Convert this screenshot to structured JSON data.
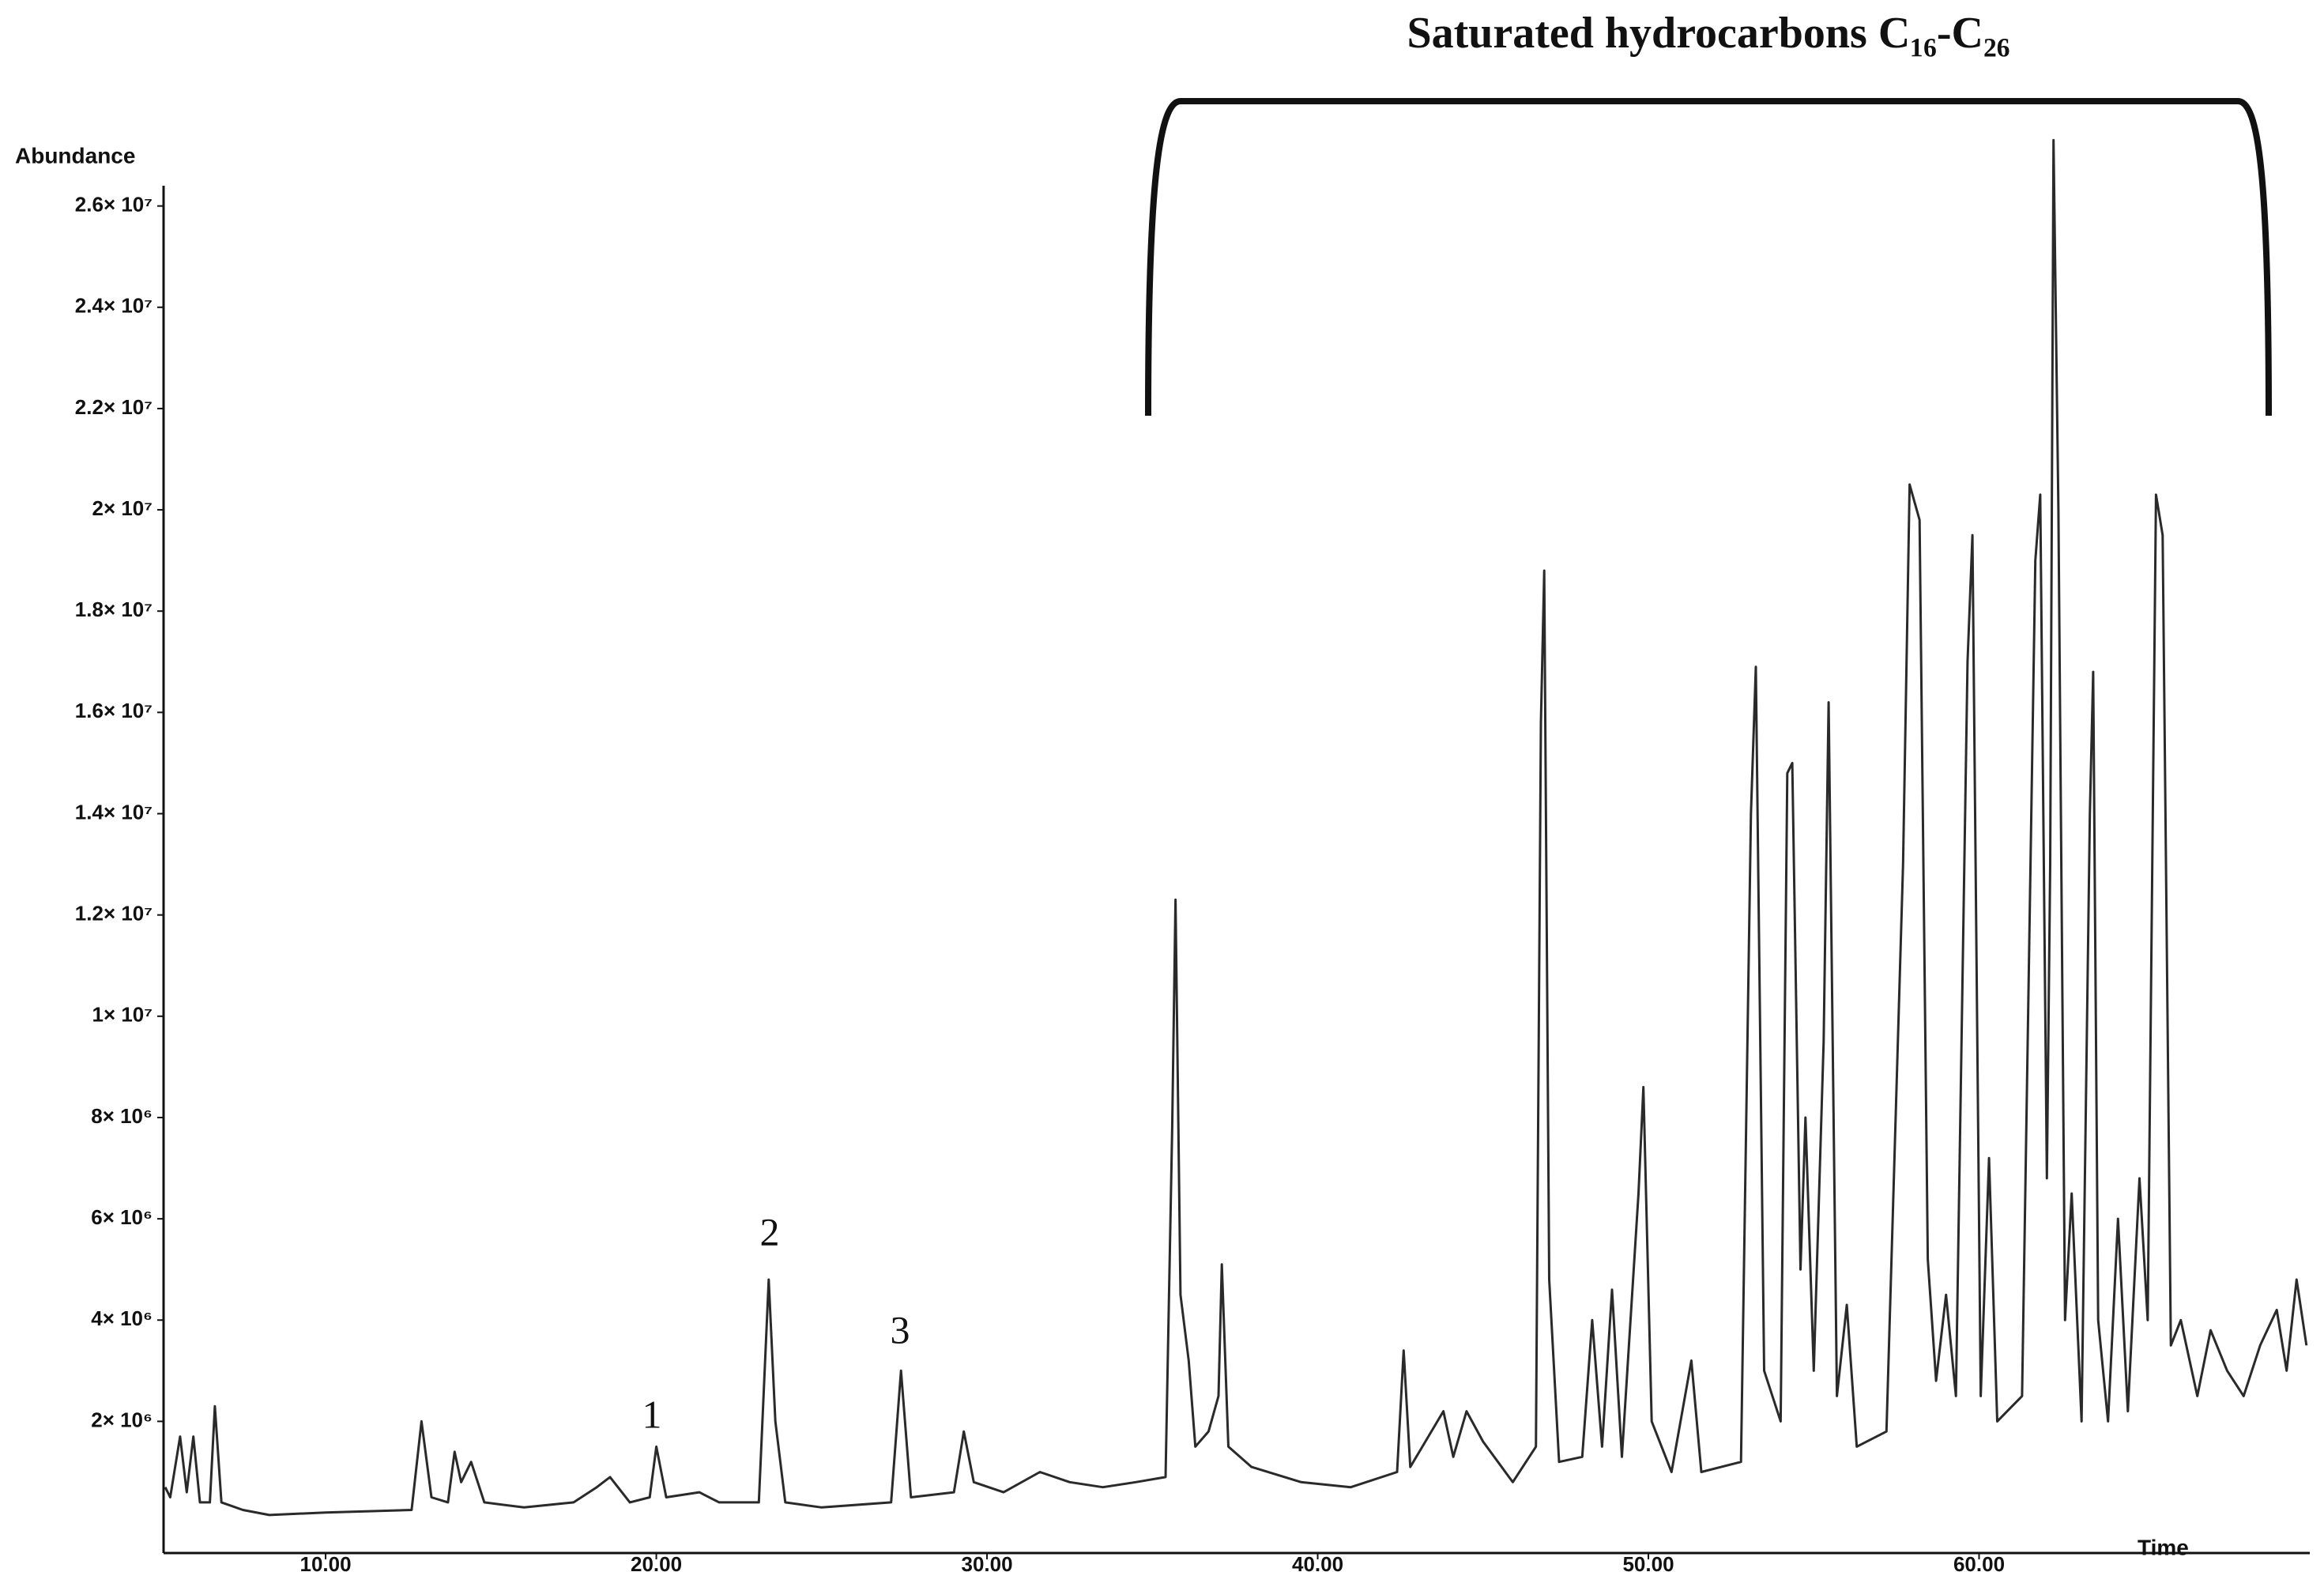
{
  "chart_data": {
    "type": "line",
    "title": "Saturated hydrocarbons C₁₆-C₂₆",
    "y_label": "Abundance",
    "x_label": "Time",
    "color": "#2a2a2a",
    "annotations": [
      "1",
      "2",
      "3"
    ],
    "xlim": [
      5.1,
      70
    ],
    "ylim": [
      -600000,
      26400000
    ],
    "xticks": [
      {
        "value": 10,
        "label": "10.00"
      },
      {
        "value": 20,
        "label": "20.00"
      },
      {
        "value": 30,
        "label": "30.00"
      },
      {
        "value": 40,
        "label": "40.00"
      },
      {
        "value": 50,
        "label": "50.00"
      },
      {
        "value": 60,
        "label": "60.00"
      }
    ],
    "yticks": [
      {
        "value": 2000000,
        "label": "2× 10⁶"
      },
      {
        "value": 4000000,
        "label": "4× 10⁶"
      },
      {
        "value": 6000000,
        "label": "6× 10⁶"
      },
      {
        "value": 8000000,
        "label": "8× 10⁶"
      },
      {
        "value": 10000000,
        "label": "1× 10⁷"
      },
      {
        "value": 12000000,
        "label": "1.2× 10⁷"
      },
      {
        "value": 14000000,
        "label": "1.4× 10⁷"
      },
      {
        "value": 16000000,
        "label": "1.6× 10⁷"
      },
      {
        "value": 18000000,
        "label": "1.8× 10⁷"
      },
      {
        "value": 20000000,
        "label": "2× 10⁷"
      },
      {
        "value": 22000000,
        "label": "2.2× 10⁷"
      },
      {
        "value": 24000000,
        "label": "2.4× 10⁷"
      },
      {
        "value": 26000000,
        "label": "2.6× 10⁷"
      }
    ],
    "x": [
      5.15,
      5.3,
      5.6,
      5.8,
      6.0,
      6.2,
      6.5,
      6.65,
      6.85,
      7.5,
      8.3,
      10,
      12.6,
      12.9,
      13.2,
      13.7,
      13.9,
      14.1,
      14.4,
      14.8,
      16,
      17.5,
      18.2,
      18.6,
      19.2,
      19.8,
      20.0,
      20.3,
      21.3,
      21.9,
      23.1,
      23.4,
      23.6,
      23.9,
      25,
      27.1,
      27.4,
      27.7,
      29.0,
      29.3,
      29.6,
      30.5,
      31.6,
      32.5,
      33.5,
      34.5,
      35.4,
      35.6,
      35.7,
      35.85,
      36.1,
      36.3,
      36.7,
      37.0,
      37.1,
      37.3,
      38,
      39.5,
      41,
      42.4,
      42.6,
      42.8,
      43.8,
      44.1,
      44.5,
      45.0,
      45.9,
      46.6,
      46.75,
      46.85,
      47.0,
      47.3,
      48.0,
      48.3,
      48.6,
      48.9,
      49.2,
      49.7,
      49.85,
      50.1,
      50.7,
      51.3,
      51.6,
      52.8,
      53.1,
      53.25,
      53.5,
      54.0,
      54.2,
      54.35,
      54.6,
      54.75,
      55.0,
      55.3,
      55.45,
      55.7,
      56.0,
      56.3,
      57.2,
      57.7,
      57.9,
      58.2,
      58.45,
      58.7,
      59.0,
      59.3,
      59.65,
      59.8,
      60.05,
      60.3,
      60.55,
      61.3,
      61.7,
      61.85,
      62.05,
      62.15,
      62.25,
      62.4,
      62.6,
      62.8,
      63.1,
      63.35,
      63.45,
      63.6,
      63.9,
      64.2,
      64.5,
      64.85,
      65.1,
      65.35,
      65.55,
      65.8,
      66.1,
      66.6,
      67.0,
      67.5,
      68.0,
      68.5,
      69.0,
      69.3,
      69.6,
      69.9
    ],
    "values": [
      700000,
      500000,
      1700000,
      600000,
      1700000,
      400000,
      400000,
      2300000,
      400000,
      250000,
      150000,
      200000,
      250000,
      2000000,
      500000,
      400000,
      1400000,
      800000,
      1200000,
      400000,
      300000,
      400000,
      700000,
      900000,
      400000,
      500000,
      1500000,
      500000,
      600000,
      400000,
      400000,
      4800000,
      2000000,
      400000,
      300000,
      400000,
      3000000,
      500000,
      600000,
      1800000,
      800000,
      600000,
      1000000,
      800000,
      700000,
      800000,
      900000,
      7800000,
      12300000,
      4500000,
      3200000,
      1500000,
      1800000,
      2500000,
      5100000,
      1500000,
      1100000,
      800000,
      700000,
      1000000,
      3400000,
      1100000,
      2200000,
      1300000,
      2200000,
      1600000,
      800000,
      1500000,
      15800000,
      18800000,
      4800000,
      1200000,
      1300000,
      4000000,
      1500000,
      4600000,
      1300000,
      6500000,
      8600000,
      2000000,
      1000000,
      3200000,
      1000000,
      1200000,
      14000000,
      16900000,
      3000000,
      2000000,
      14800000,
      15000000,
      5000000,
      8000000,
      3000000,
      9500000,
      16200000,
      2500000,
      4300000,
      1500000,
      1800000,
      13000000,
      20500000,
      19800000,
      5200000,
      2800000,
      4500000,
      2500000,
      17000000,
      19500000,
      2500000,
      7200000,
      2000000,
      2500000,
      19000000,
      20300000,
      6800000,
      13000000,
      27300000,
      20000000,
      4000000,
      6500000,
      2000000,
      14000000,
      16800000,
      4000000,
      2000000,
      6000000,
      2200000,
      6800000,
      4000000,
      20300000,
      19500000,
      3500000,
      4000000,
      2500000,
      3800000,
      3000000,
      2500000,
      3500000,
      4200000,
      3000000,
      4800000,
      3500000
    ]
  }
}
